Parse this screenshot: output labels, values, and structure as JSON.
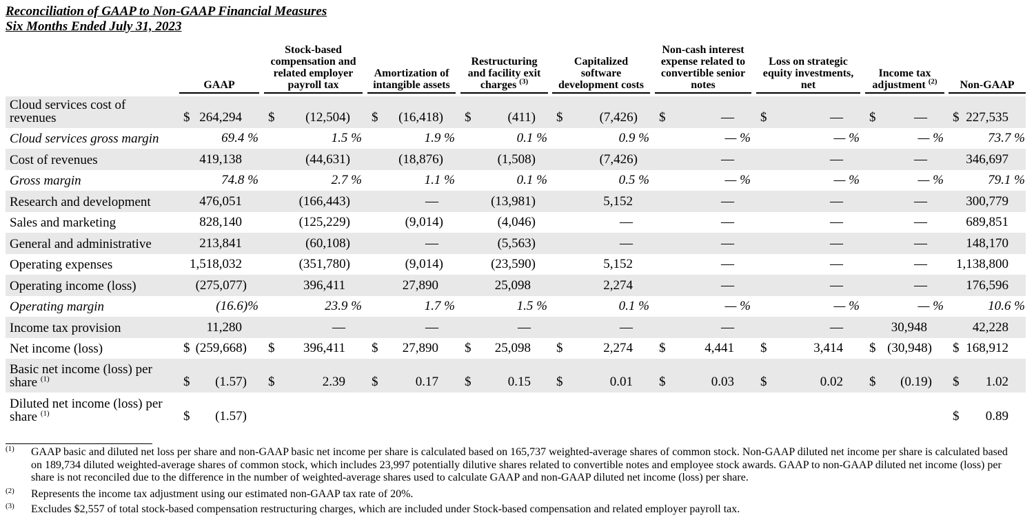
{
  "title": [
    "Reconciliation of GAAP to Non-GAAP Financial Measures",
    "Six Months Ended July 31, 2023"
  ],
  "table": {
    "columns": [
      {
        "lines": [
          "GAAP"
        ]
      },
      {
        "lines": [
          "Stock-based",
          "compensation and",
          "related employer",
          "payroll tax"
        ]
      },
      {
        "lines": [
          "Amortization of",
          "intangible assets"
        ]
      },
      {
        "lines": [
          "Restructuring",
          "and facility exit",
          "charges"
        ],
        "note": "(3)"
      },
      {
        "lines": [
          "Capitalized",
          "software",
          "development costs"
        ]
      },
      {
        "lines": [
          "Non-cash interest",
          "expense related to",
          "convertible senior",
          "notes"
        ]
      },
      {
        "lines": [
          "Loss on strategic",
          "equity investments,",
          "net"
        ]
      },
      {
        "lines": [
          "Income tax",
          "adjustment"
        ],
        "note": "(2)"
      },
      {
        "lines": [
          "Non-GAAP"
        ]
      }
    ],
    "rows": [
      {
        "label": "Cloud services cost of revenues",
        "cells": [
          {
            "cur": "$",
            "val": "264,294"
          },
          {
            "cur": "$",
            "val": "(12,504)"
          },
          {
            "cur": "$",
            "val": "(16,418)"
          },
          {
            "cur": "$",
            "val": "(411)"
          },
          {
            "cur": "$",
            "val": "(7,426)"
          },
          {
            "cur": "$",
            "val": "—"
          },
          {
            "cur": "$",
            "val": "—"
          },
          {
            "cur": "$",
            "val": "—"
          },
          {
            "cur": "$",
            "val": "227,535"
          }
        ]
      },
      {
        "label": "Cloud services gross margin",
        "italic": true,
        "cells": [
          "69.4 %",
          "1.5 %",
          "1.9 %",
          "0.1 %",
          "0.9 %",
          "— %",
          "— %",
          "— %",
          "73.7 %"
        ]
      },
      {
        "label": "Cost of revenues",
        "cells": [
          "419,138",
          "(44,631)",
          "(18,876)",
          "(1,508)",
          "(7,426)",
          "—",
          "—",
          "—",
          "346,697"
        ]
      },
      {
        "label": "Gross margin",
        "italic": true,
        "cells": [
          "74.8 %",
          "2.7 %",
          "1.1 %",
          "0.1 %",
          "0.5 %",
          "— %",
          "— %",
          "— %",
          "79.1 %"
        ]
      },
      {
        "label": "Research and development",
        "cells": [
          "476,051",
          "(166,443)",
          "—",
          "(13,981)",
          "5,152",
          "—",
          "—",
          "—",
          "300,779"
        ]
      },
      {
        "label": "Sales and marketing",
        "cells": [
          "828,140",
          "(125,229)",
          "(9,014)",
          "(4,046)",
          "—",
          "—",
          "—",
          "—",
          "689,851"
        ]
      },
      {
        "label": "General and administrative",
        "cells": [
          "213,841",
          "(60,108)",
          "—",
          "(5,563)",
          "—",
          "—",
          "—",
          "—",
          "148,170"
        ]
      },
      {
        "label": "Operating expenses",
        "cells": [
          "1,518,032",
          "(351,780)",
          "(9,014)",
          "(23,590)",
          "5,152",
          "—",
          "—",
          "—",
          "1,138,800"
        ]
      },
      {
        "label": "Operating income (loss)",
        "cells": [
          "(275,077)",
          "396,411",
          "27,890",
          "25,098",
          "2,274",
          "—",
          "—",
          "—",
          "176,596"
        ]
      },
      {
        "label": "Operating margin",
        "italic": true,
        "cells": [
          "(16.6)%",
          "23.9 %",
          "1.7 %",
          "1.5 %",
          "0.1 %",
          "— %",
          "— %",
          "— %",
          "10.6 %"
        ]
      },
      {
        "label": "Income tax provision",
        "cells": [
          "11,280",
          "—",
          "—",
          "—",
          "—",
          "—",
          "—",
          "30,948",
          "42,228"
        ]
      },
      {
        "label": "Net income (loss)",
        "cells": [
          {
            "cur": "$",
            "val": "(259,668)"
          },
          {
            "cur": "$",
            "val": "396,411"
          },
          {
            "cur": "$",
            "val": "27,890"
          },
          {
            "cur": "$",
            "val": "25,098"
          },
          {
            "cur": "$",
            "val": "2,274"
          },
          {
            "cur": "$",
            "val": "4,441"
          },
          {
            "cur": "$",
            "val": "3,414"
          },
          {
            "cur": "$",
            "val": "(30,948)"
          },
          {
            "cur": "$",
            "val": "168,912"
          }
        ]
      },
      {
        "label": "Basic net income (loss) per share",
        "note": "(1)",
        "cells": [
          {
            "cur": "$",
            "val": "(1.57)"
          },
          {
            "cur": "$",
            "val": "2.39"
          },
          {
            "cur": "$",
            "val": "0.17"
          },
          {
            "cur": "$",
            "val": "0.15"
          },
          {
            "cur": "$",
            "val": "0.01"
          },
          {
            "cur": "$",
            "val": "0.03"
          },
          {
            "cur": "$",
            "val": "0.02"
          },
          {
            "cur": "$",
            "val": "(0.19)"
          },
          {
            "cur": "$",
            "val": "1.02"
          }
        ]
      },
      {
        "label": "Diluted net income (loss) per share",
        "note": "(1)",
        "cells": [
          {
            "cur": "$",
            "val": "(1.57)"
          },
          null,
          null,
          null,
          null,
          null,
          null,
          null,
          {
            "cur": "$",
            "val": "0.89"
          }
        ]
      }
    ]
  },
  "footnotes": [
    {
      "mark": "(1)",
      "text": "GAAP basic and diluted net loss per share and non-GAAP basic net income per share is calculated based on 165,737 weighted-average shares of common stock. Non-GAAP diluted net income per share is calculated based on 189,734 diluted weighted-average shares of common stock, which includes 23,997 potentially dilutive shares related to convertible notes and employee stock awards. GAAP to non-GAAP diluted net income (loss) per share is not reconciled due to the difference in the number of weighted-average shares used to calculate GAAP and non-GAAP diluted net income (loss) per share."
    },
    {
      "mark": "(2)",
      "text": "Represents the income tax adjustment using our estimated non-GAAP tax rate of 20%."
    },
    {
      "mark": "(3)",
      "text": "Excludes $2,557 of total stock-based compensation restructuring charges, which are included under Stock-based compensation and related employer payroll tax."
    }
  ]
}
